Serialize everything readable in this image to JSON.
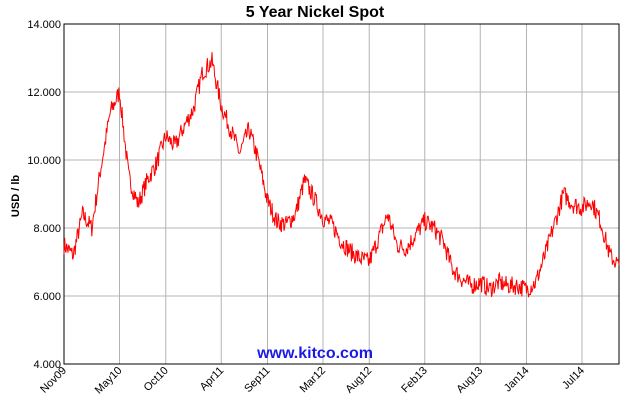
{
  "chart_data": {
    "type": "line",
    "title": "5 Year Nickel Spot",
    "xlabel": "",
    "ylabel": "USD / lb",
    "watermark": "www.kitco.com",
    "ylim": [
      4.0,
      14.0
    ],
    "y_ticks": [
      "4.000",
      "6.000",
      "8.000",
      "10.000",
      "12.000",
      "14.000"
    ],
    "x_ticks": [
      "Nov09",
      "May10",
      "Oct10",
      "Apr11",
      "Sep11",
      "Mar12",
      "Aug12",
      "Feb13",
      "Aug13",
      "Jan14",
      "Jul14"
    ],
    "grid": true,
    "colors": {
      "line": "#ff0000",
      "grid": "#b4b4b4",
      "axis": "#000000",
      "watermark": "#1a1ae6"
    },
    "series": [
      {
        "x": [
          "Nov09",
          "Dec09",
          "Jan10",
          "Feb10",
          "Mar10",
          "Apr10",
          "May10",
          "Jun10",
          "Jul10",
          "Aug10",
          "Sep10",
          "Oct10",
          "Nov10",
          "Dec10",
          "Jan11",
          "Feb11",
          "Mar11",
          "Apr11",
          "May11",
          "Jun11",
          "Jul11",
          "Aug11",
          "Sep11",
          "Oct11",
          "Nov11",
          "Dec11",
          "Jan12",
          "Feb12",
          "Mar12",
          "Apr12",
          "May12",
          "Jun12",
          "Jul12",
          "Aug12",
          "Sep12",
          "Oct12",
          "Nov12",
          "Dec12",
          "Jan13",
          "Feb13",
          "Mar13",
          "Apr13",
          "May13",
          "Jun13",
          "Jul13",
          "Aug13",
          "Sep13",
          "Oct13",
          "Nov13",
          "Dec13",
          "Jan14",
          "Feb14",
          "Mar14",
          "Apr14",
          "May14",
          "Jun14",
          "Jul14",
          "Aug14",
          "Sep14",
          "Oct14",
          "Nov14"
        ],
        "values": [
          7.5,
          7.2,
          8.4,
          8.0,
          9.8,
          11.4,
          12.0,
          9.5,
          8.7,
          9.4,
          9.9,
          10.7,
          10.4,
          11.0,
          11.5,
          12.6,
          12.9,
          11.6,
          10.9,
          10.2,
          10.9,
          10.0,
          8.8,
          8.2,
          8.1,
          8.4,
          9.4,
          8.9,
          8.3,
          8.1,
          7.6,
          7.3,
          7.1,
          7.0,
          7.7,
          8.4,
          7.5,
          7.4,
          7.8,
          8.2,
          8.0,
          7.6,
          6.8,
          6.5,
          6.3,
          6.4,
          6.2,
          6.4,
          6.3,
          6.3,
          6.2,
          6.4,
          7.2,
          8.1,
          9.0,
          8.7,
          8.6,
          8.8,
          8.2,
          7.2,
          6.9
        ]
      }
    ]
  }
}
